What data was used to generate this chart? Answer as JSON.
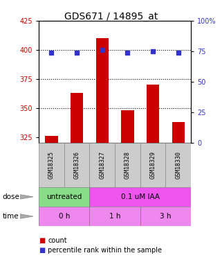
{
  "title": "GDS671 / 14895_at",
  "samples": [
    "GSM18325",
    "GSM18326",
    "GSM18327",
    "GSM18328",
    "GSM18329",
    "GSM18330"
  ],
  "counts": [
    326,
    363,
    410,
    348,
    370,
    338
  ],
  "percentiles": [
    74,
    74,
    76,
    74,
    75,
    74
  ],
  "ylim_left": [
    320,
    425
  ],
  "ylim_right": [
    0,
    100
  ],
  "yticks_left": [
    325,
    350,
    375,
    400,
    425
  ],
  "yticks_right": [
    0,
    25,
    50,
    75,
    100
  ],
  "bar_color": "#cc0000",
  "dot_color": "#3333cc",
  "bar_bottom": 320,
  "dose_labels": [
    {
      "text": "untreated",
      "start": 0,
      "end": 2,
      "color": "#88dd88"
    },
    {
      "text": "0.1 uM IAA",
      "start": 2,
      "end": 6,
      "color": "#ee55ee"
    }
  ],
  "time_labels": [
    {
      "text": "0 h",
      "start": 0,
      "end": 2,
      "color": "#ee88ee"
    },
    {
      "text": "1 h",
      "start": 2,
      "end": 4,
      "color": "#ee88ee"
    },
    {
      "text": "3 h",
      "start": 4,
      "end": 6,
      "color": "#ee88ee"
    }
  ],
  "legend_count_color": "#cc0000",
  "legend_dot_color": "#3333cc",
  "label_color_left": "#cc0000",
  "label_color_right": "#3333cc",
  "tick_label_size": 7,
  "title_fontsize": 10,
  "sample_bg_color": "#cccccc",
  "sample_border_color": "#888888"
}
